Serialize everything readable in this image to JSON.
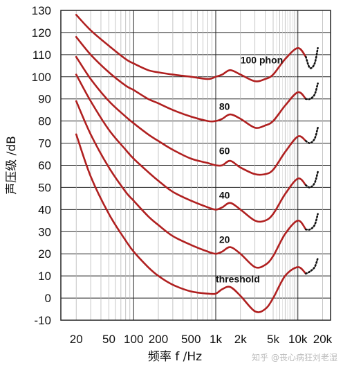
{
  "chart_data": {
    "type": "line",
    "title": "",
    "xlabel": "频率 f /Hz",
    "ylabel": "声压级 /dB",
    "x_scale": "log",
    "xlim": [
      13,
      25000
    ],
    "ylim": [
      -10,
      130
    ],
    "x_ticks": [
      20,
      50,
      100,
      200,
      500,
      1000,
      2000,
      5000,
      10000,
      20000
    ],
    "x_tick_labels": [
      "20",
      "50",
      "100",
      "200",
      "500",
      "1k",
      "2k",
      "5k",
      "10k",
      "20k"
    ],
    "y_ticks": [
      -10,
      0,
      10,
      20,
      30,
      40,
      50,
      60,
      70,
      80,
      90,
      100,
      110,
      120,
      130
    ],
    "y_tick_labels": [
      "-10",
      "0",
      "10",
      "20",
      "30",
      "40",
      "50",
      "60",
      "70",
      "80",
      "90",
      "100",
      "110",
      "120",
      "130"
    ],
    "grid": true,
    "line_color": "#b02020",
    "series": [
      {
        "name": "threshold",
        "x": [
          20,
          30,
          50,
          80,
          100,
          150,
          200,
          300,
          500,
          800,
          1000,
          1200,
          1500,
          2000,
          3000,
          4000,
          5000,
          7000,
          10000,
          12500
        ],
        "y": [
          74,
          55,
          38,
          26,
          21,
          14,
          10,
          6,
          3,
          2,
          2,
          4,
          5,
          1,
          -6,
          -5,
          0,
          10,
          14,
          11
        ],
        "ext_x": [
          12500,
          14000,
          16000,
          17500
        ],
        "ext_y": [
          11,
          12,
          14,
          18
        ]
      },
      {
        "name": "20",
        "x": [
          20,
          30,
          50,
          80,
          100,
          150,
          200,
          300,
          500,
          800,
          1000,
          1200,
          1500,
          2000,
          3000,
          4000,
          5000,
          7000,
          10000,
          12500
        ],
        "y": [
          89,
          74,
          59,
          48,
          44,
          37,
          33,
          28,
          24,
          21,
          20,
          21,
          23,
          20,
          14,
          15,
          19,
          29,
          35,
          31
        ],
        "ext_x": [
          12500,
          14000,
          16000,
          17500
        ],
        "ext_y": [
          31,
          31,
          33,
          38
        ]
      },
      {
        "name": "40",
        "x": [
          20,
          30,
          50,
          80,
          100,
          150,
          200,
          300,
          500,
          800,
          1000,
          1200,
          1500,
          2000,
          3000,
          4000,
          5000,
          7000,
          10000,
          12500
        ],
        "y": [
          101,
          89,
          76,
          67,
          63,
          57,
          53,
          48,
          44,
          41,
          40,
          41,
          43,
          40,
          35,
          35,
          38,
          47,
          54,
          51
        ],
        "ext_x": [
          12500,
          14000,
          16000,
          17500
        ],
        "ext_y": [
          51,
          50,
          52,
          57
        ]
      },
      {
        "name": "60",
        "x": [
          20,
          30,
          50,
          80,
          100,
          150,
          200,
          300,
          500,
          800,
          1000,
          1200,
          1500,
          2000,
          3000,
          4000,
          5000,
          7000,
          10000,
          12500
        ],
        "y": [
          109,
          99,
          89,
          82,
          79,
          74,
          71,
          67,
          63,
          61,
          60,
          60,
          62,
          59,
          56,
          56,
          58,
          66,
          73,
          71
        ],
        "ext_x": [
          12500,
          14000,
          16000,
          17500
        ],
        "ext_y": [
          71,
          70,
          72,
          77
        ]
      },
      {
        "name": "80",
        "x": [
          20,
          30,
          50,
          80,
          100,
          150,
          200,
          300,
          500,
          800,
          1000,
          1200,
          1500,
          2000,
          3000,
          4000,
          5000,
          7000,
          10000,
          12500
        ],
        "y": [
          118,
          110,
          102,
          96,
          94,
          90,
          88,
          85,
          82,
          80,
          80,
          81,
          83,
          81,
          77,
          78,
          80,
          87,
          93,
          90
        ],
        "ext_x": [
          12500,
          14000,
          16000,
          17500
        ],
        "ext_y": [
          90,
          90,
          92,
          97
        ]
      },
      {
        "name": "100 phon",
        "x": [
          20,
          30,
          50,
          80,
          100,
          150,
          200,
          300,
          500,
          800,
          1000,
          1200,
          1500,
          2000,
          3000,
          4000,
          5000,
          7000,
          10000,
          12500
        ],
        "y": [
          128,
          121,
          114,
          108,
          106,
          103,
          102,
          101,
          100,
          99,
          100,
          101,
          103,
          101,
          98,
          99,
          101,
          108,
          113,
          109
        ],
        "ext_x": [
          12500,
          14000,
          16000,
          17500
        ],
        "ext_y": [
          109,
          104,
          106,
          113
        ]
      }
    ],
    "curve_labels": [
      {
        "text": "100 phon",
        "x": 2000,
        "y": 106
      },
      {
        "text": "80",
        "x": 1100,
        "y": 85
      },
      {
        "text": "60",
        "x": 1100,
        "y": 65
      },
      {
        "text": "40",
        "x": 1100,
        "y": 45
      },
      {
        "text": "20",
        "x": 1100,
        "y": 25
      },
      {
        "text": "threshold",
        "x": 1000,
        "y": 7
      }
    ]
  },
  "watermark": "知乎 @丧心病狂刘老湿"
}
